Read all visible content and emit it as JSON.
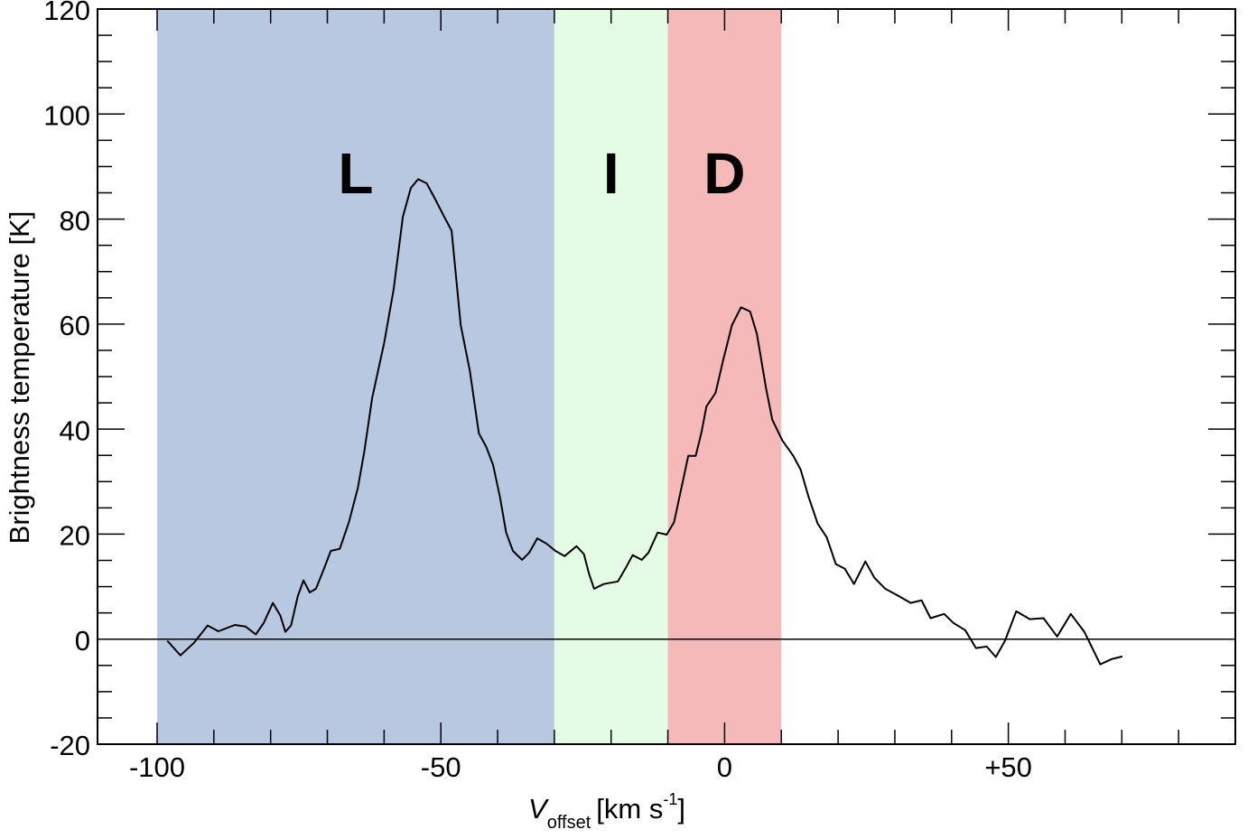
{
  "chart_data": {
    "type": "line",
    "ylabel": "Brightness temperature [K]",
    "xlabel": {
      "symbol": "V",
      "subscript": "offset",
      "unit": "[km s",
      "superscript": "-1",
      "close": "]"
    },
    "xlim": [
      -110.5,
      90
    ],
    "ylim": [
      -20,
      120
    ],
    "xticks": [
      -100,
      -50,
      0,
      {
        "value": 50,
        "label": "+50"
      }
    ],
    "xminor_ticks": [
      -90,
      -80,
      -70,
      -60,
      -40,
      -30,
      -20,
      -10,
      10,
      20,
      30,
      40,
      60,
      70,
      80
    ],
    "yticks": [
      -20,
      0,
      20,
      40,
      60,
      80,
      100,
      120
    ],
    "yminor_ticks": [
      -15,
      -10,
      -5,
      5,
      10,
      15,
      25,
      30,
      35,
      45,
      50,
      55,
      65,
      70,
      75,
      85,
      90,
      95,
      105,
      110,
      115
    ],
    "baseline": 0,
    "regions": [
      {
        "label": "L",
        "start": -100,
        "end": -30,
        "color": "#b9c8e1",
        "label_color": "#1d4c9e"
      },
      {
        "label": "I",
        "start": -30,
        "end": -10,
        "color": "#e4fbe4",
        "label_color": "#169a1e"
      },
      {
        "label": "D",
        "start": -10,
        "end": 10,
        "color": "#f5b9b9",
        "label_color": "#e0201e"
      }
    ],
    "color": "#000000",
    "x": [
      -98.2,
      -95.9,
      -93.5,
      -91.1,
      -89.2,
      -86.3,
      -84.4,
      -82.6,
      -81.2,
      -79.6,
      -78.3,
      -77.4,
      -76.4,
      -75.2,
      -74.2,
      -73.1,
      -72.0,
      -70.7,
      -69.4,
      -67.8,
      -66.2,
      -64.6,
      -63.5,
      -62.1,
      -60.0,
      -58.3,
      -56.7,
      -55.3,
      -54.0,
      -52.5,
      -51.0,
      -49.4,
      -48.1,
      -46.5,
      -44.9,
      -43.3,
      -42.0,
      -40.8,
      -39.6,
      -38.5,
      -37.3,
      -35.7,
      -34.4,
      -33.0,
      -31.4,
      -29.8,
      -28.2,
      -26.1,
      -24.8,
      -23.9,
      -23.0,
      -21.3,
      -18.8,
      -17.5,
      -16.2,
      -14.6,
      -13.4,
      -11.8,
      -10.2,
      -8.9,
      -7.6,
      -6.4,
      -5.1,
      -4.1,
      -3.2,
      -1.6,
      -0.3,
      1.3,
      2.9,
      4.5,
      5.7,
      7.3,
      8.4,
      10.2,
      12.1,
      13.4,
      14.8,
      16.4,
      18.0,
      19.6,
      21.2,
      22.8,
      24.8,
      26.4,
      28.3,
      30.7,
      32.8,
      34.7,
      36.3,
      38.7,
      40.3,
      42.4,
      44.3,
      46.2,
      47.8,
      49.4,
      51.4,
      53.8,
      56.2,
      58.6,
      61.0,
      63.4,
      66.2,
      68.2,
      70.1
    ],
    "values": [
      -0.3,
      -3.1,
      -0.7,
      2.6,
      1.5,
      2.7,
      2.4,
      0.9,
      3.1,
      6.9,
      4.5,
      1.4,
      2.6,
      8.2,
      11.2,
      8.9,
      9.6,
      13.1,
      16.8,
      17.2,
      22.3,
      28.9,
      35.7,
      46.0,
      56.4,
      66.7,
      80.4,
      85.9,
      87.6,
      86.8,
      83.8,
      80.4,
      77.8,
      59.8,
      51.2,
      39.2,
      36.6,
      33.2,
      27.1,
      20.3,
      16.8,
      15.1,
      16.5,
      19.2,
      18.2,
      16.8,
      15.8,
      17.7,
      16.2,
      12.5,
      9.6,
      10.5,
      11.0,
      13.4,
      16.0,
      15.1,
      16.5,
      20.3,
      19.9,
      22.3,
      28.9,
      34.9,
      34.9,
      39.2,
      44.3,
      46.9,
      52.9,
      59.8,
      63.2,
      62.4,
      58.1,
      47.8,
      41.8,
      37.8,
      34.9,
      32.3,
      27.1,
      22.0,
      19.4,
      14.3,
      13.4,
      10.5,
      14.8,
      11.7,
      9.6,
      8.2,
      6.9,
      7.4,
      4.0,
      4.8,
      3.1,
      1.7,
      -1.7,
      -1.4,
      -3.4,
      -0.3,
      5.3,
      3.8,
      4.0,
      0.5,
      4.8,
      1.4,
      -4.8,
      -3.8,
      -3.3
    ]
  }
}
